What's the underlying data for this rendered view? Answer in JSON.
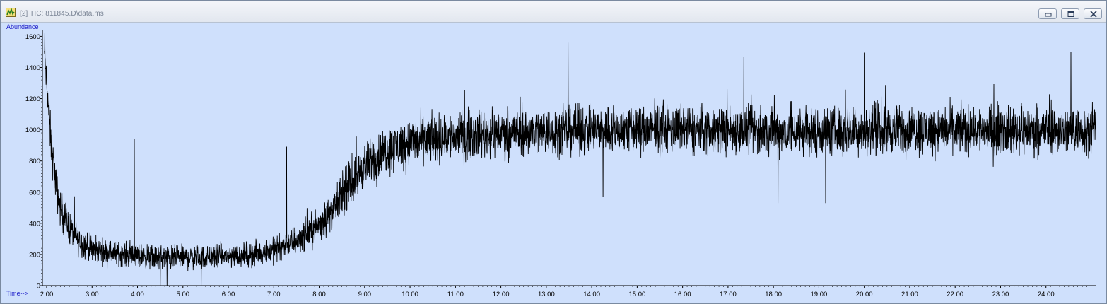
{
  "window": {
    "title": "[2] TIC: 811845.D\\data.ms",
    "icon": "chromatogram-app-icon",
    "controls": [
      "minimize-icon",
      "maximize-icon",
      "close-icon"
    ]
  },
  "colors": {
    "plot_bg": "#cfe0fc",
    "trace": "#000000",
    "axis_label": "#1919c8"
  },
  "chart_data": {
    "type": "line",
    "ylabel": "Abundance",
    "xlabel": "Time-->",
    "x_ticks": [
      "2.00",
      "3.00",
      "4.00",
      "5.00",
      "6.00",
      "7.00",
      "8.00",
      "9.00",
      "10.00",
      "11.00",
      "12.00",
      "13.00",
      "14.00",
      "15.00",
      "16.00",
      "17.00",
      "18.00",
      "19.00",
      "20.00",
      "21.00",
      "22.00",
      "23.00",
      "24.00"
    ],
    "y_ticks": [
      "0",
      "200",
      "400",
      "600",
      "800",
      "1000",
      "1200",
      "1400",
      "1600"
    ],
    "xlim": [
      1.9,
      25.1
    ],
    "ylim": [
      0,
      1620
    ],
    "series": [
      {
        "x": [
          1.95,
          2.0,
          2.1,
          2.2,
          2.3,
          2.5,
          2.7,
          3.0,
          3.5,
          4.0,
          4.5,
          5.0,
          5.5,
          6.0,
          6.5,
          7.0,
          7.5,
          8.0,
          8.3,
          8.6,
          9.0,
          9.5,
          10.0,
          10.5,
          11.0,
          12.0,
          13.0,
          14.0,
          15.0,
          16.0,
          17.0,
          18.0,
          19.0,
          20.0,
          21.0,
          22.0,
          23.0,
          24.0,
          25.0
        ],
        "y": [
          1500,
          1300,
          900,
          650,
          500,
          370,
          290,
          230,
          210,
          190,
          180,
          180,
          180,
          190,
          200,
          230,
          290,
          390,
          480,
          620,
          770,
          870,
          920,
          940,
          960,
          980,
          990,
          1000,
          1000,
          1000,
          1000,
          990,
          990,
          1000,
          1000,
          1000,
          1000,
          1000,
          1000
        ],
        "noise": [
          60,
          100,
          120,
          110,
          100,
          90,
          80,
          70,
          65,
          65,
          65,
          65,
          65,
          65,
          65,
          70,
          80,
          90,
          100,
          110,
          120,
          130,
          130,
          130,
          130,
          130,
          130,
          130,
          130,
          130,
          130,
          130,
          130,
          130,
          130,
          130,
          130,
          130,
          130
        ]
      }
    ],
    "spikes": [
      {
        "x": 1.96,
        "y": 1620
      },
      {
        "x": 3.93,
        "y": 940
      },
      {
        "x": 7.28,
        "y": 890
      },
      {
        "x": 13.48,
        "y": 1560
      },
      {
        "x": 17.35,
        "y": 1470
      },
      {
        "x": 20.0,
        "y": 1495
      },
      {
        "x": 24.55,
        "y": 1500
      },
      {
        "x": 19.15,
        "y": 530
      },
      {
        "x": 18.1,
        "y": 530
      },
      {
        "x": 14.25,
        "y": 570
      },
      {
        "x": 4.5,
        "y": 0
      },
      {
        "x": 4.65,
        "y": 0
      },
      {
        "x": 5.4,
        "y": 0
      }
    ]
  }
}
